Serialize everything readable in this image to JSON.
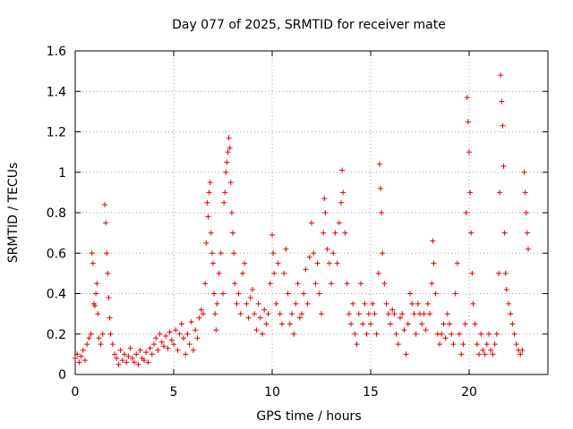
{
  "chart_data": {
    "type": "scatter",
    "title": "Day 077 of 2025, SRMTID for receiver mate",
    "xlabel": "GPS time / hours",
    "ylabel": "SRMTID / TECUs",
    "xlim": [
      0,
      24
    ],
    "ylim": [
      0,
      1.6
    ],
    "xticks": [
      0,
      5,
      10,
      15,
      20
    ],
    "xtick_labels": [
      "0",
      "5",
      "10",
      "15",
      "20"
    ],
    "yticks": [
      0,
      0.2,
      0.4,
      0.6,
      0.8,
      1,
      1.2,
      1.4,
      1.6
    ],
    "ytick_labels": [
      "0",
      "0.2",
      "0.4",
      "0.6",
      "0.8",
      "1",
      "1.2",
      "1.4",
      "1.6"
    ],
    "grid": true,
    "marker": "plus",
    "series": [
      {
        "name": "SRMTID",
        "color": "#e00000",
        "points": [
          [
            0.0,
            0.08
          ],
          [
            0.1,
            0.1
          ],
          [
            0.2,
            0.06
          ],
          [
            0.3,
            0.09
          ],
          [
            0.4,
            0.12
          ],
          [
            0.5,
            0.07
          ],
          [
            0.6,
            0.15
          ],
          [
            0.7,
            0.18
          ],
          [
            0.8,
            0.2
          ],
          [
            0.85,
            0.6
          ],
          [
            0.9,
            0.55
          ],
          [
            0.95,
            0.35
          ],
          [
            1.0,
            0.34
          ],
          [
            1.05,
            0.4
          ],
          [
            1.1,
            0.45
          ],
          [
            1.15,
            0.3
          ],
          [
            1.2,
            0.18
          ],
          [
            1.3,
            0.15
          ],
          [
            1.4,
            0.2
          ],
          [
            1.5,
            0.84
          ],
          [
            1.55,
            0.75
          ],
          [
            1.6,
            0.6
          ],
          [
            1.65,
            0.5
          ],
          [
            1.7,
            0.38
          ],
          [
            1.75,
            0.28
          ],
          [
            1.8,
            0.2
          ],
          [
            1.9,
            0.15
          ],
          [
            2.0,
            0.1
          ],
          [
            2.1,
            0.08
          ],
          [
            2.2,
            0.05
          ],
          [
            2.3,
            0.12
          ],
          [
            2.4,
            0.07
          ],
          [
            2.5,
            0.1
          ],
          [
            2.6,
            0.06
          ],
          [
            2.7,
            0.09
          ],
          [
            2.8,
            0.13
          ],
          [
            2.9,
            0.08
          ],
          [
            3.0,
            0.06
          ],
          [
            3.1,
            0.1
          ],
          [
            3.2,
            0.05
          ],
          [
            3.3,
            0.12
          ],
          [
            3.4,
            0.08
          ],
          [
            3.5,
            0.07
          ],
          [
            3.6,
            0.11
          ],
          [
            3.7,
            0.06
          ],
          [
            3.8,
            0.13
          ],
          [
            3.9,
            0.1
          ],
          [
            4.0,
            0.15
          ],
          [
            4.1,
            0.18
          ],
          [
            4.2,
            0.12
          ],
          [
            4.3,
            0.2
          ],
          [
            4.4,
            0.16
          ],
          [
            4.5,
            0.14
          ],
          [
            4.6,
            0.19
          ],
          [
            4.7,
            0.13
          ],
          [
            4.8,
            0.21
          ],
          [
            4.9,
            0.17
          ],
          [
            5.0,
            0.15
          ],
          [
            5.1,
            0.22
          ],
          [
            5.2,
            0.12
          ],
          [
            5.3,
            0.2
          ],
          [
            5.4,
            0.25
          ],
          [
            5.5,
            0.18
          ],
          [
            5.6,
            0.1
          ],
          [
            5.7,
            0.2
          ],
          [
            5.8,
            0.15
          ],
          [
            5.9,
            0.26
          ],
          [
            6.0,
            0.12
          ],
          [
            6.1,
            0.22
          ],
          [
            6.2,
            0.18
          ],
          [
            6.3,
            0.28
          ],
          [
            6.4,
            0.32
          ],
          [
            6.5,
            0.3
          ],
          [
            6.6,
            0.45
          ],
          [
            6.65,
            0.65
          ],
          [
            6.7,
            0.85
          ],
          [
            6.75,
            0.78
          ],
          [
            6.8,
            0.9
          ],
          [
            6.85,
            0.95
          ],
          [
            6.9,
            0.7
          ],
          [
            6.95,
            0.6
          ],
          [
            7.0,
            0.55
          ],
          [
            7.05,
            0.4
          ],
          [
            7.1,
            0.3
          ],
          [
            7.15,
            0.22
          ],
          [
            7.2,
            0.35
          ],
          [
            7.3,
            0.5
          ],
          [
            7.4,
            0.6
          ],
          [
            7.5,
            0.4
          ],
          [
            7.55,
            0.85
          ],
          [
            7.6,
            0.9
          ],
          [
            7.65,
            1.0
          ],
          [
            7.7,
            1.05
          ],
          [
            7.75,
            1.1
          ],
          [
            7.8,
            1.17
          ],
          [
            7.85,
            1.12
          ],
          [
            7.9,
            0.95
          ],
          [
            7.95,
            0.8
          ],
          [
            8.0,
            0.7
          ],
          [
            8.05,
            0.6
          ],
          [
            8.1,
            0.45
          ],
          [
            8.2,
            0.35
          ],
          [
            8.3,
            0.4
          ],
          [
            8.4,
            0.3
          ],
          [
            8.5,
            0.5
          ],
          [
            8.6,
            0.55
          ],
          [
            8.7,
            0.35
          ],
          [
            8.8,
            0.28
          ],
          [
            8.9,
            0.38
          ],
          [
            9.0,
            0.42
          ],
          [
            9.1,
            0.3
          ],
          [
            9.2,
            0.22
          ],
          [
            9.3,
            0.35
          ],
          [
            9.4,
            0.28
          ],
          [
            9.5,
            0.2
          ],
          [
            9.6,
            0.32
          ],
          [
            9.7,
            0.25
          ],
          [
            9.8,
            0.3
          ],
          [
            9.9,
            0.45
          ],
          [
            10.0,
            0.69
          ],
          [
            10.05,
            0.6
          ],
          [
            10.1,
            0.5
          ],
          [
            10.2,
            0.35
          ],
          [
            10.3,
            0.55
          ],
          [
            10.4,
            0.3
          ],
          [
            10.5,
            0.25
          ],
          [
            10.6,
            0.5
          ],
          [
            10.7,
            0.62
          ],
          [
            10.8,
            0.4
          ],
          [
            10.9,
            0.25
          ],
          [
            11.0,
            0.3
          ],
          [
            11.1,
            0.2
          ],
          [
            11.2,
            0.35
          ],
          [
            11.3,
            0.45
          ],
          [
            11.4,
            0.28
          ],
          [
            11.5,
            0.3
          ],
          [
            11.6,
            0.4
          ],
          [
            11.7,
            0.52
          ],
          [
            11.8,
            0.35
          ],
          [
            11.9,
            0.58
          ],
          [
            12.0,
            0.75
          ],
          [
            12.1,
            0.6
          ],
          [
            12.2,
            0.45
          ],
          [
            12.3,
            0.55
          ],
          [
            12.4,
            0.4
          ],
          [
            12.5,
            0.3
          ],
          [
            12.6,
            0.7
          ],
          [
            12.65,
            0.87
          ],
          [
            12.7,
            0.8
          ],
          [
            12.8,
            0.62
          ],
          [
            12.9,
            0.55
          ],
          [
            13.0,
            0.45
          ],
          [
            13.1,
            0.6
          ],
          [
            13.2,
            0.7
          ],
          [
            13.3,
            0.55
          ],
          [
            13.4,
            0.75
          ],
          [
            13.5,
            0.85
          ],
          [
            13.55,
            1.01
          ],
          [
            13.6,
            0.9
          ],
          [
            13.7,
            0.7
          ],
          [
            13.8,
            0.45
          ],
          [
            13.9,
            0.3
          ],
          [
            14.0,
            0.25
          ],
          [
            14.1,
            0.35
          ],
          [
            14.2,
            0.2
          ],
          [
            14.3,
            0.15
          ],
          [
            14.4,
            0.3
          ],
          [
            14.5,
            0.45
          ],
          [
            14.6,
            0.25
          ],
          [
            14.7,
            0.35
          ],
          [
            14.8,
            0.2
          ],
          [
            14.9,
            0.3
          ],
          [
            15.0,
            0.25
          ],
          [
            15.1,
            0.35
          ],
          [
            15.2,
            0.3
          ],
          [
            15.3,
            0.2
          ],
          [
            15.4,
            0.5
          ],
          [
            15.45,
            1.04
          ],
          [
            15.5,
            0.92
          ],
          [
            15.55,
            0.8
          ],
          [
            15.6,
            0.6
          ],
          [
            15.7,
            0.45
          ],
          [
            15.8,
            0.35
          ],
          [
            15.9,
            0.3
          ],
          [
            16.0,
            0.25
          ],
          [
            16.1,
            0.32
          ],
          [
            16.2,
            0.3
          ],
          [
            16.3,
            0.2
          ],
          [
            16.4,
            0.15
          ],
          [
            16.5,
            0.28
          ],
          [
            16.6,
            0.3
          ],
          [
            16.7,
            0.22
          ],
          [
            16.8,
            0.1
          ],
          [
            16.9,
            0.25
          ],
          [
            17.0,
            0.4
          ],
          [
            17.1,
            0.35
          ],
          [
            17.2,
            0.3
          ],
          [
            17.3,
            0.2
          ],
          [
            17.4,
            0.35
          ],
          [
            17.5,
            0.3
          ],
          [
            17.6,
            0.25
          ],
          [
            17.7,
            0.3
          ],
          [
            17.8,
            0.22
          ],
          [
            17.9,
            0.35
          ],
          [
            18.0,
            0.3
          ],
          [
            18.1,
            0.45
          ],
          [
            18.15,
            0.66
          ],
          [
            18.2,
            0.55
          ],
          [
            18.3,
            0.4
          ],
          [
            18.4,
            0.2
          ],
          [
            18.5,
            0.15
          ],
          [
            18.6,
            0.2
          ],
          [
            18.7,
            0.25
          ],
          [
            18.8,
            0.18
          ],
          [
            18.9,
            0.3
          ],
          [
            19.0,
            0.25
          ],
          [
            19.1,
            0.2
          ],
          [
            19.2,
            0.15
          ],
          [
            19.3,
            0.4
          ],
          [
            19.4,
            0.55
          ],
          [
            19.5,
            0.2
          ],
          [
            19.6,
            0.1
          ],
          [
            19.7,
            0.15
          ],
          [
            19.8,
            0.25
          ],
          [
            19.85,
            0.8
          ],
          [
            19.9,
            1.37
          ],
          [
            19.95,
            1.25
          ],
          [
            20.0,
            1.1
          ],
          [
            20.05,
            0.9
          ],
          [
            20.1,
            0.7
          ],
          [
            20.15,
            0.5
          ],
          [
            20.2,
            0.35
          ],
          [
            20.3,
            0.25
          ],
          [
            20.4,
            0.15
          ],
          [
            20.5,
            0.1
          ],
          [
            20.6,
            0.2
          ],
          [
            20.7,
            0.12
          ],
          [
            20.8,
            0.1
          ],
          [
            20.9,
            0.15
          ],
          [
            21.0,
            0.2
          ],
          [
            21.1,
            0.12
          ],
          [
            21.2,
            0.1
          ],
          [
            21.3,
            0.15
          ],
          [
            21.4,
            0.2
          ],
          [
            21.5,
            0.5
          ],
          [
            21.55,
            0.9
          ],
          [
            21.6,
            1.48
          ],
          [
            21.65,
            1.35
          ],
          [
            21.7,
            1.23
          ],
          [
            21.75,
            1.03
          ],
          [
            21.8,
            0.7
          ],
          [
            21.85,
            0.5
          ],
          [
            21.9,
            0.42
          ],
          [
            22.0,
            0.35
          ],
          [
            22.1,
            0.3
          ],
          [
            22.2,
            0.25
          ],
          [
            22.3,
            0.2
          ],
          [
            22.4,
            0.15
          ],
          [
            22.5,
            0.12
          ],
          [
            22.6,
            0.1
          ],
          [
            22.7,
            0.12
          ],
          [
            22.8,
            1.0
          ],
          [
            22.85,
            0.9
          ],
          [
            22.9,
            0.8
          ],
          [
            22.95,
            0.7
          ],
          [
            23.0,
            0.62
          ]
        ]
      }
    ]
  }
}
